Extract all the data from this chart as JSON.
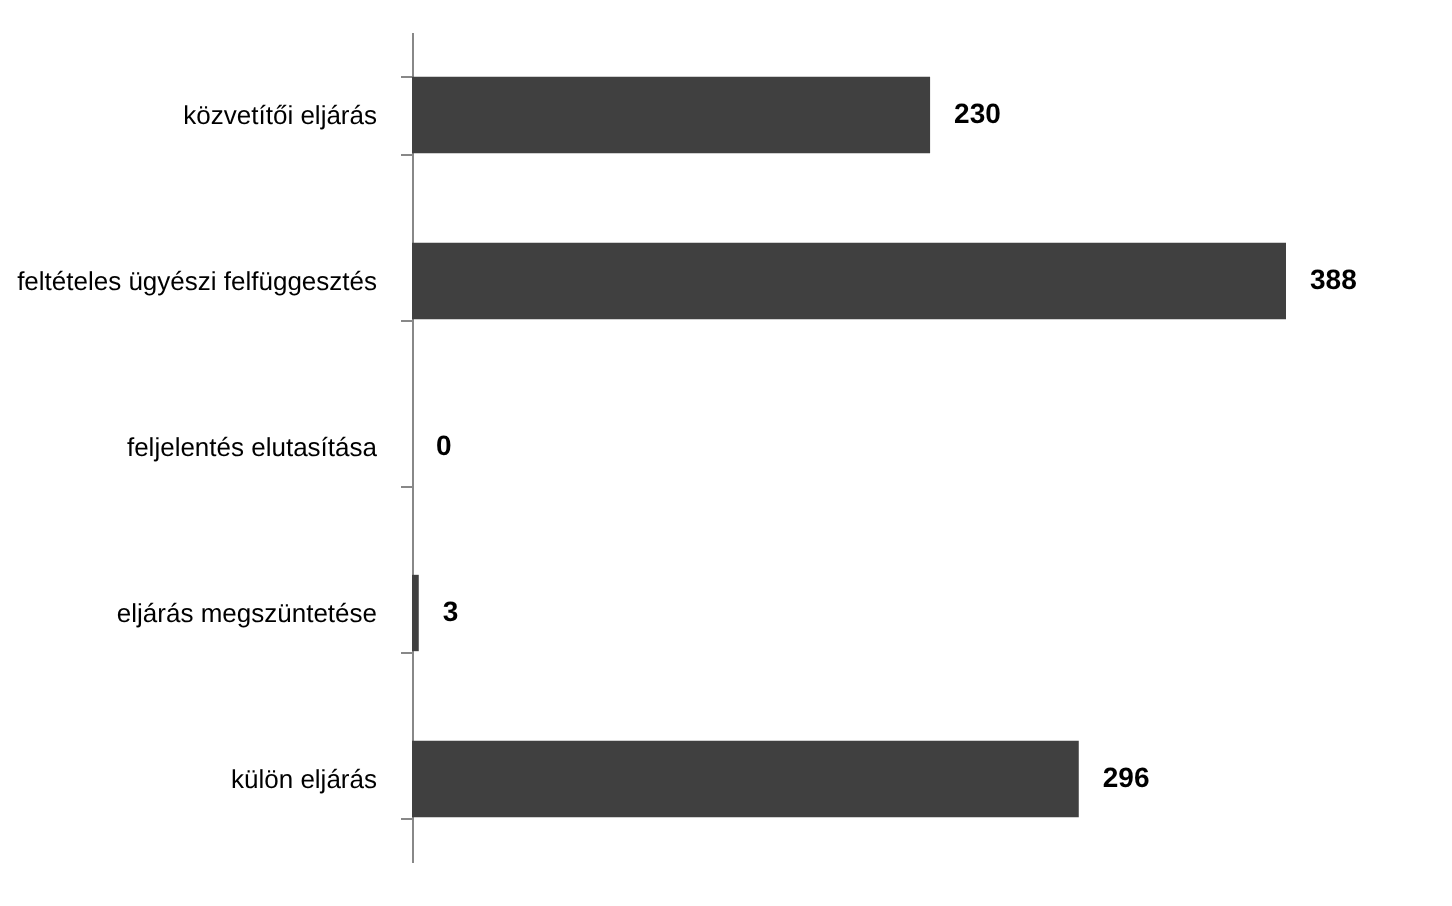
{
  "chart_data": {
    "type": "bar",
    "orientation": "horizontal",
    "data_labels": true,
    "categories": [
      "közvetítői eljárás",
      "feltételes ügyészi felfüggesztés",
      "feljelentés elutasítása",
      "eljárás megszüntetése",
      "külön eljárás"
    ],
    "values": [
      230,
      388,
      0,
      3,
      296
    ],
    "color": "#404040"
  }
}
